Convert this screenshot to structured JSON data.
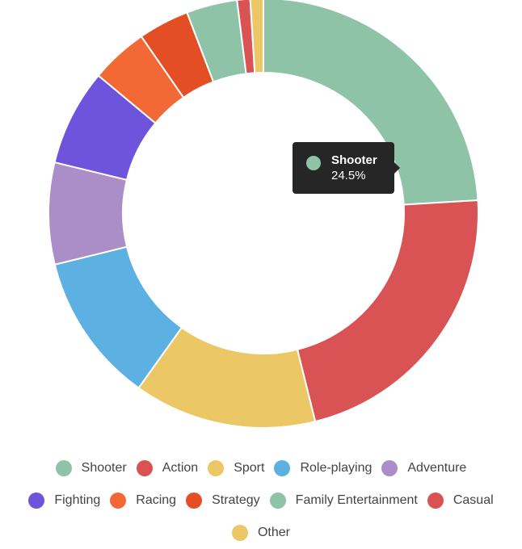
{
  "chart_data": {
    "type": "pie",
    "donut": true,
    "categories": [
      "Shooter",
      "Action",
      "Sport",
      "Role-playing",
      "Adventure",
      "Fighting",
      "Racing",
      "Strategy",
      "Family Entertainment",
      "Casual",
      "Other"
    ],
    "values": [
      24.5,
      22.5,
      14.0,
      11.5,
      7.8,
      7.4,
      4.4,
      3.9,
      3.9,
      1.0,
      1.0
    ],
    "colors": [
      "#8fc3a8",
      "#d95355",
      "#ebc766",
      "#5db1e2",
      "#ab8ec8",
      "#6e54dd",
      "#f36936",
      "#e44e25",
      "#8fc3a8",
      "#d95355",
      "#ebc766"
    ],
    "unit": "%",
    "legend_position": "bottom"
  },
  "tooltip": {
    "name": "Shooter",
    "value": "24.5%",
    "color": "#8fc3a8"
  }
}
